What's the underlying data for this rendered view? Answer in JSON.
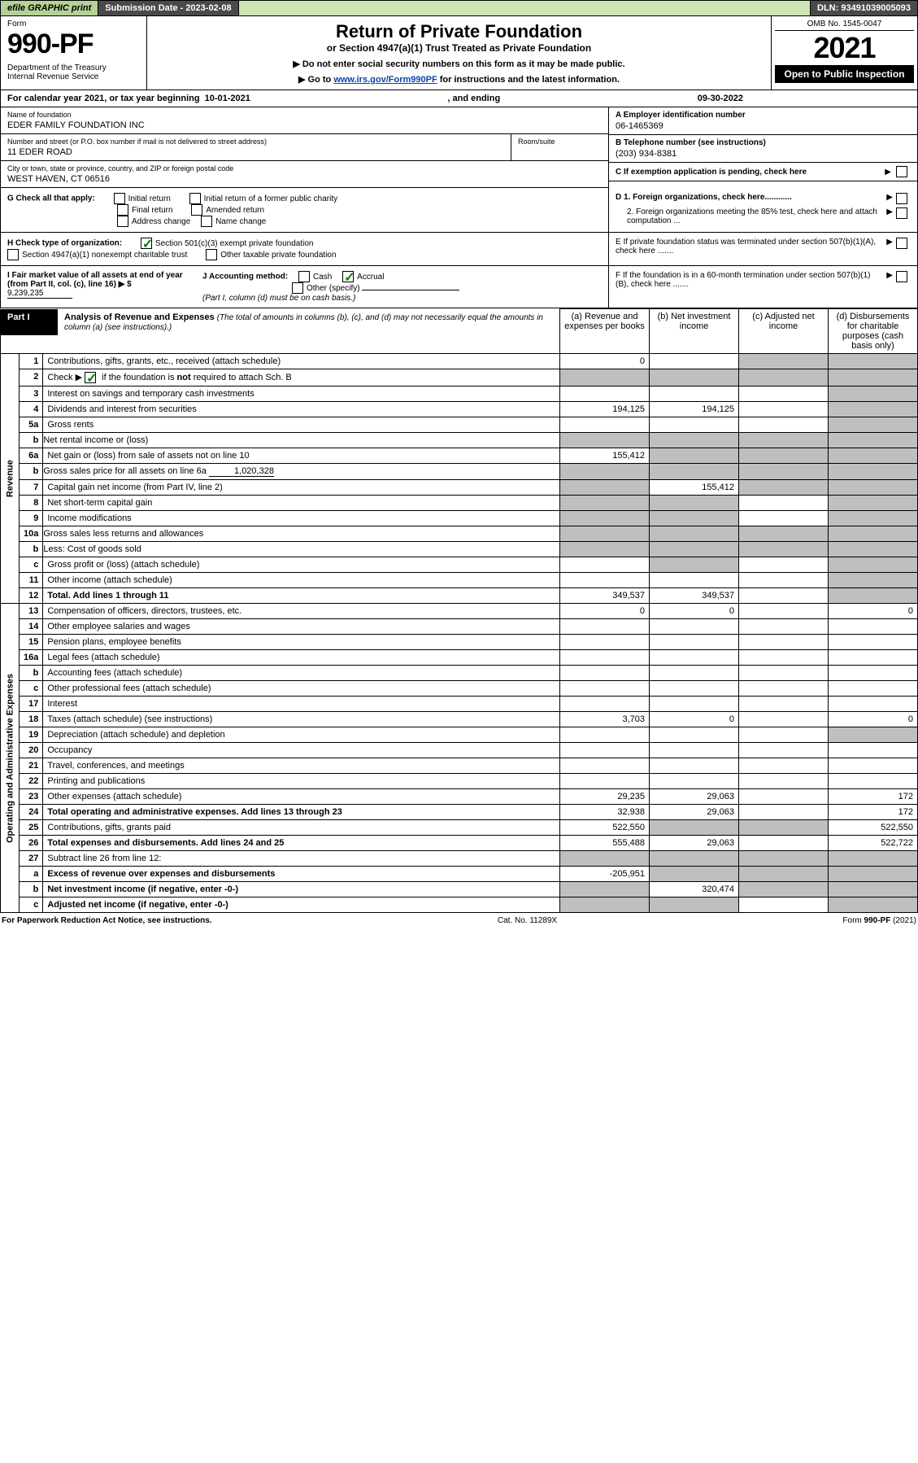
{
  "topbar": {
    "efile": "efile GRAPHIC print",
    "subdate": "Submission Date - 2023-02-08",
    "dln": "DLN: 93491039005093"
  },
  "header": {
    "form_label": "Form",
    "form_no": "990-PF",
    "dept": "Department of the Treasury\nInternal Revenue Service",
    "title": "Return of Private Foundation",
    "subtitle": "or Section 4947(a)(1) Trust Treated as Private Foundation",
    "note1": "▶ Do not enter social security numbers on this form as it may be made public.",
    "note2_pre": "▶ Go to ",
    "note2_link": "www.irs.gov/Form990PF",
    "note2_post": " for instructions and the latest information.",
    "omb": "OMB No. 1545-0047",
    "year": "2021",
    "open": "Open to Public Inspection"
  },
  "cal": {
    "prefix": "For calendar year 2021, or tax year beginning ",
    "begin": "10-01-2021",
    "mid": ", and ending ",
    "end": "09-30-2022"
  },
  "info": {
    "name_label": "Name of foundation",
    "name": "EDER FAMILY FOUNDATION INC",
    "addr_label": "Number and street (or P.O. box number if mail is not delivered to street address)",
    "addr": "11 EDER ROAD",
    "room_label": "Room/suite",
    "room": "",
    "city_label": "City or town, state or province, country, and ZIP or foreign postal code",
    "city": "WEST HAVEN, CT  06516",
    "ein_label": "A Employer identification number",
    "ein": "06-1465369",
    "tel_label": "B Telephone number (see instructions)",
    "tel": "(203) 934-8381",
    "c_label": "C If exemption application is pending, check here",
    "d1": "D 1. Foreign organizations, check here............",
    "d2": "2. Foreign organizations meeting the 85% test, check here and attach computation ...",
    "e": "E  If private foundation status was terminated under section 507(b)(1)(A), check here .......",
    "f": "F  If the foundation is in a 60-month termination under section 507(b)(1)(B), check here .......",
    "g_label": "G Check all that apply:",
    "g_opts": [
      "Initial return",
      "Initial return of a former public charity",
      "Final return",
      "Amended return",
      "Address change",
      "Name change"
    ],
    "h_label": "H Check type of organization:",
    "h_opt1": "Section 501(c)(3) exempt private foundation",
    "h_opt2": "Section 4947(a)(1) nonexempt charitable trust",
    "h_opt3": "Other taxable private foundation",
    "i_label": "I Fair market value of all assets at end of year (from Part II, col. (c), line 16) ▶ $",
    "i_val": "9,239,235",
    "j_label": "J Accounting method:",
    "j_cash": "Cash",
    "j_accrual": "Accrual",
    "j_other": "Other (specify)",
    "j_note": "(Part I, column (d) must be on cash basis.)"
  },
  "part1": {
    "hdr": "Part I",
    "title": "Analysis of Revenue and Expenses",
    "desc": "(The total of amounts in columns (b), (c), and (d) may not necessarily equal the amounts in column (a) (see instructions).)",
    "col_a": "(a)  Revenue and expenses per books",
    "col_b": "(b)  Net investment income",
    "col_c": "(c)  Adjusted net income",
    "col_d": "(d)  Disbursements for charitable purposes (cash basis only)",
    "vlabel_rev": "Revenue",
    "vlabel_exp": "Operating and Administrative Expenses"
  },
  "rows": [
    {
      "no": "1",
      "desc": "Contributions, gifts, grants, etc., received (attach schedule)",
      "a": "0",
      "b": "",
      "c": "g",
      "d": "g"
    },
    {
      "no": "2",
      "desc": "Check ▶ ☑ if the foundation is not required to attach Sch. B",
      "a": "g",
      "b": "g",
      "c": "g",
      "d": "g",
      "inline_check": true
    },
    {
      "no": "3",
      "desc": "Interest on savings and temporary cash investments",
      "a": "",
      "b": "",
      "c": "",
      "d": "g"
    },
    {
      "no": "4",
      "desc": "Dividends and interest from securities",
      "a": "194,125",
      "b": "194,125",
      "c": "",
      "d": "g"
    },
    {
      "no": "5a",
      "desc": "Gross rents",
      "a": "",
      "b": "",
      "c": "",
      "d": "g"
    },
    {
      "no": "b",
      "desc": "Net rental income or (loss)",
      "a": "g",
      "b": "g",
      "c": "g",
      "d": "g",
      "inset": true
    },
    {
      "no": "6a",
      "desc": "Net gain or (loss) from sale of assets not on line 10",
      "a": "155,412",
      "b": "g",
      "c": "g",
      "d": "g"
    },
    {
      "no": "b",
      "desc": "Gross sales price for all assets on line 6a",
      "a": "g",
      "b": "g",
      "c": "g",
      "d": "g",
      "inset": true,
      "inline_val": "1,020,328"
    },
    {
      "no": "7",
      "desc": "Capital gain net income (from Part IV, line 2)",
      "a": "g",
      "b": "155,412",
      "c": "g",
      "d": "g"
    },
    {
      "no": "8",
      "desc": "Net short-term capital gain",
      "a": "g",
      "b": "g",
      "c": "",
      "d": "g"
    },
    {
      "no": "9",
      "desc": "Income modifications",
      "a": "g",
      "b": "g",
      "c": "",
      "d": "g"
    },
    {
      "no": "10a",
      "desc": "Gross sales less returns and allowances",
      "a": "g",
      "b": "g",
      "c": "g",
      "d": "g",
      "inset": true
    },
    {
      "no": "b",
      "desc": "Less: Cost of goods sold",
      "a": "g",
      "b": "g",
      "c": "g",
      "d": "g",
      "inset": true
    },
    {
      "no": "c",
      "desc": "Gross profit or (loss) (attach schedule)",
      "a": "",
      "b": "g",
      "c": "",
      "d": "g"
    },
    {
      "no": "11",
      "desc": "Other income (attach schedule)",
      "a": "",
      "b": "",
      "c": "",
      "d": "g"
    },
    {
      "no": "12",
      "desc": "Total. Add lines 1 through 11",
      "a": "349,537",
      "b": "349,537",
      "c": "",
      "d": "g",
      "bold": true
    },
    {
      "no": "13",
      "desc": "Compensation of officers, directors, trustees, etc.",
      "a": "0",
      "b": "0",
      "c": "",
      "d": "0"
    },
    {
      "no": "14",
      "desc": "Other employee salaries and wages",
      "a": "",
      "b": "",
      "c": "",
      "d": ""
    },
    {
      "no": "15",
      "desc": "Pension plans, employee benefits",
      "a": "",
      "b": "",
      "c": "",
      "d": ""
    },
    {
      "no": "16a",
      "desc": "Legal fees (attach schedule)",
      "a": "",
      "b": "",
      "c": "",
      "d": ""
    },
    {
      "no": "b",
      "desc": "Accounting fees (attach schedule)",
      "a": "",
      "b": "",
      "c": "",
      "d": ""
    },
    {
      "no": "c",
      "desc": "Other professional fees (attach schedule)",
      "a": "",
      "b": "",
      "c": "",
      "d": ""
    },
    {
      "no": "17",
      "desc": "Interest",
      "a": "",
      "b": "",
      "c": "",
      "d": ""
    },
    {
      "no": "18",
      "desc": "Taxes (attach schedule) (see instructions)",
      "a": "3,703",
      "b": "0",
      "c": "",
      "d": "0"
    },
    {
      "no": "19",
      "desc": "Depreciation (attach schedule) and depletion",
      "a": "",
      "b": "",
      "c": "",
      "d": "g"
    },
    {
      "no": "20",
      "desc": "Occupancy",
      "a": "",
      "b": "",
      "c": "",
      "d": ""
    },
    {
      "no": "21",
      "desc": "Travel, conferences, and meetings",
      "a": "",
      "b": "",
      "c": "",
      "d": ""
    },
    {
      "no": "22",
      "desc": "Printing and publications",
      "a": "",
      "b": "",
      "c": "",
      "d": ""
    },
    {
      "no": "23",
      "desc": "Other expenses (attach schedule)",
      "a": "29,235",
      "b": "29,063",
      "c": "",
      "d": "172"
    },
    {
      "no": "24",
      "desc": "Total operating and administrative expenses. Add lines 13 through 23",
      "a": "32,938",
      "b": "29,063",
      "c": "",
      "d": "172",
      "bold": true
    },
    {
      "no": "25",
      "desc": "Contributions, gifts, grants paid",
      "a": "522,550",
      "b": "g",
      "c": "g",
      "d": "522,550"
    },
    {
      "no": "26",
      "desc": "Total expenses and disbursements. Add lines 24 and 25",
      "a": "555,488",
      "b": "29,063",
      "c": "",
      "d": "522,722",
      "bold": true
    },
    {
      "no": "27",
      "desc": "Subtract line 26 from line 12:",
      "a": "g",
      "b": "g",
      "c": "g",
      "d": "g"
    },
    {
      "no": "a",
      "desc": "Excess of revenue over expenses and disbursements",
      "a": "-205,951",
      "b": "g",
      "c": "g",
      "d": "g",
      "bold": true
    },
    {
      "no": "b",
      "desc": "Net investment income (if negative, enter -0-)",
      "a": "g",
      "b": "320,474",
      "c": "g",
      "d": "g",
      "bold": true
    },
    {
      "no": "c",
      "desc": "Adjusted net income (if negative, enter -0-)",
      "a": "g",
      "b": "g",
      "c": "",
      "d": "g",
      "bold": true
    }
  ],
  "footer": {
    "left": "For Paperwork Reduction Act Notice, see instructions.",
    "mid": "Cat. No. 11289X",
    "right": "Form 990-PF (2021)"
  }
}
